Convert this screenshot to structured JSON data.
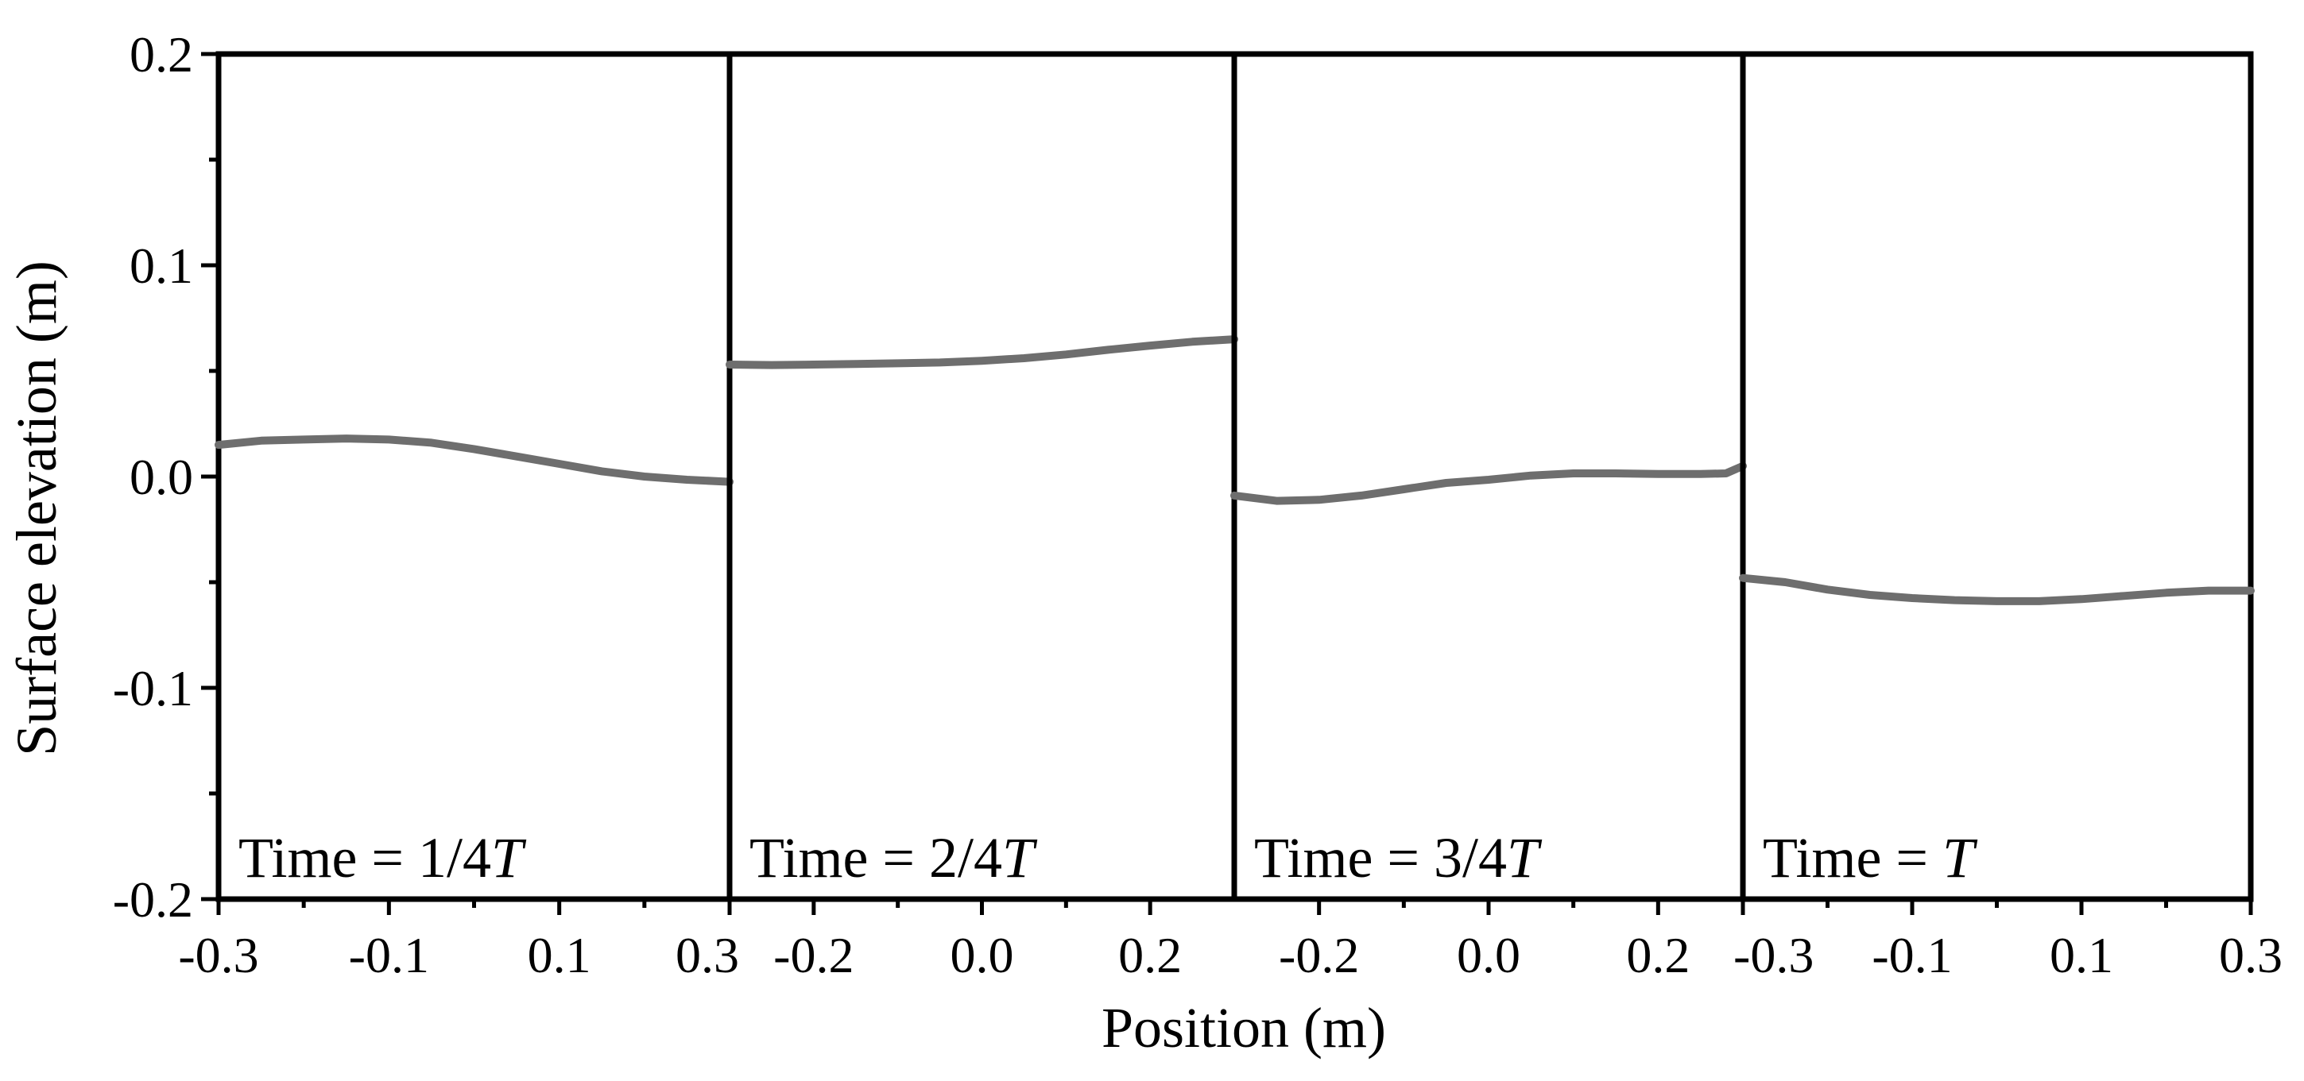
{
  "colors": {
    "series": "#6e6e6e",
    "axis": "#000000"
  },
  "chart_data": {
    "type": "line",
    "ylabel": "Surface elevation (m)",
    "xlabel": "Position (m)",
    "ylim": [
      -0.2,
      0.2
    ],
    "yticks": [
      "-0.2",
      "-0.1",
      "0.0",
      "0.1",
      "0.2"
    ],
    "grid": false,
    "panels": [
      {
        "label_prefix": "Time = 1/4",
        "label_italic": "T",
        "xlim": [
          -0.3,
          0.3
        ],
        "xticks": [
          {
            "v": -0.3,
            "label": "-0.3"
          },
          {
            "v": -0.1,
            "label": "-0.1"
          },
          {
            "v": 0.1,
            "label": "0.1"
          },
          {
            "v": 0.3,
            "label": "0.3"
          }
        ],
        "minor": [
          -0.2,
          0.0,
          0.2
        ],
        "x": [
          -0.3,
          -0.25,
          -0.2,
          -0.15,
          -0.1,
          -0.05,
          0.0,
          0.05,
          0.1,
          0.15,
          0.2,
          0.25,
          0.3
        ],
        "y": [
          0.015,
          0.017,
          0.0175,
          0.018,
          0.0175,
          0.016,
          0.013,
          0.0095,
          0.006,
          0.0025,
          0.0,
          -0.0015,
          -0.0025
        ]
      },
      {
        "label_prefix": "Time = 2/4",
        "label_italic": "T",
        "xlim": [
          -0.3,
          0.3
        ],
        "xticks": [
          {
            "v": -0.2,
            "label": "-0.2"
          },
          {
            "v": 0.0,
            "label": "0.0"
          },
          {
            "v": 0.2,
            "label": "0.2"
          }
        ],
        "minor": [
          -0.1,
          0.1
        ],
        "x": [
          -0.3,
          -0.25,
          -0.2,
          -0.15,
          -0.1,
          -0.05,
          0.0,
          0.05,
          0.1,
          0.15,
          0.2,
          0.25,
          0.3
        ],
        "y": [
          0.053,
          0.0528,
          0.053,
          0.0533,
          0.0536,
          0.054,
          0.0548,
          0.056,
          0.0578,
          0.06,
          0.062,
          0.0638,
          0.065
        ]
      },
      {
        "label_prefix": "Time = 3/4",
        "label_italic": "T",
        "xlim": [
          -0.3,
          0.3
        ],
        "xticks": [
          {
            "v": -0.2,
            "label": "-0.2"
          },
          {
            "v": 0.0,
            "label": "0.0"
          },
          {
            "v": 0.2,
            "label": "0.2"
          }
        ],
        "minor": [
          -0.1,
          0.1
        ],
        "x": [
          -0.3,
          -0.25,
          -0.2,
          -0.15,
          -0.1,
          -0.05,
          0.0,
          0.05,
          0.1,
          0.15,
          0.2,
          0.25,
          0.28,
          0.3
        ],
        "y": [
          -0.009,
          -0.0115,
          -0.011,
          -0.009,
          -0.006,
          -0.003,
          -0.0015,
          0.0005,
          0.0015,
          0.0015,
          0.0012,
          0.0012,
          0.0015,
          0.005
        ]
      },
      {
        "label_prefix": "Time = ",
        "label_italic": "T",
        "xlim": [
          -0.3,
          0.3
        ],
        "xticks": [
          {
            "v": -0.3,
            "label": "-0.3"
          },
          {
            "v": -0.1,
            "label": "-0.1"
          },
          {
            "v": 0.1,
            "label": "0.1"
          },
          {
            "v": 0.3,
            "label": "0.3"
          }
        ],
        "minor": [
          -0.2,
          0.0,
          0.2
        ],
        "x": [
          -0.3,
          -0.25,
          -0.2,
          -0.15,
          -0.1,
          -0.05,
          0.0,
          0.05,
          0.1,
          0.15,
          0.2,
          0.25,
          0.3
        ],
        "y": [
          -0.048,
          -0.05,
          -0.0535,
          -0.056,
          -0.0575,
          -0.0585,
          -0.059,
          -0.059,
          -0.058,
          -0.0565,
          -0.055,
          -0.054,
          -0.054
        ]
      }
    ]
  }
}
